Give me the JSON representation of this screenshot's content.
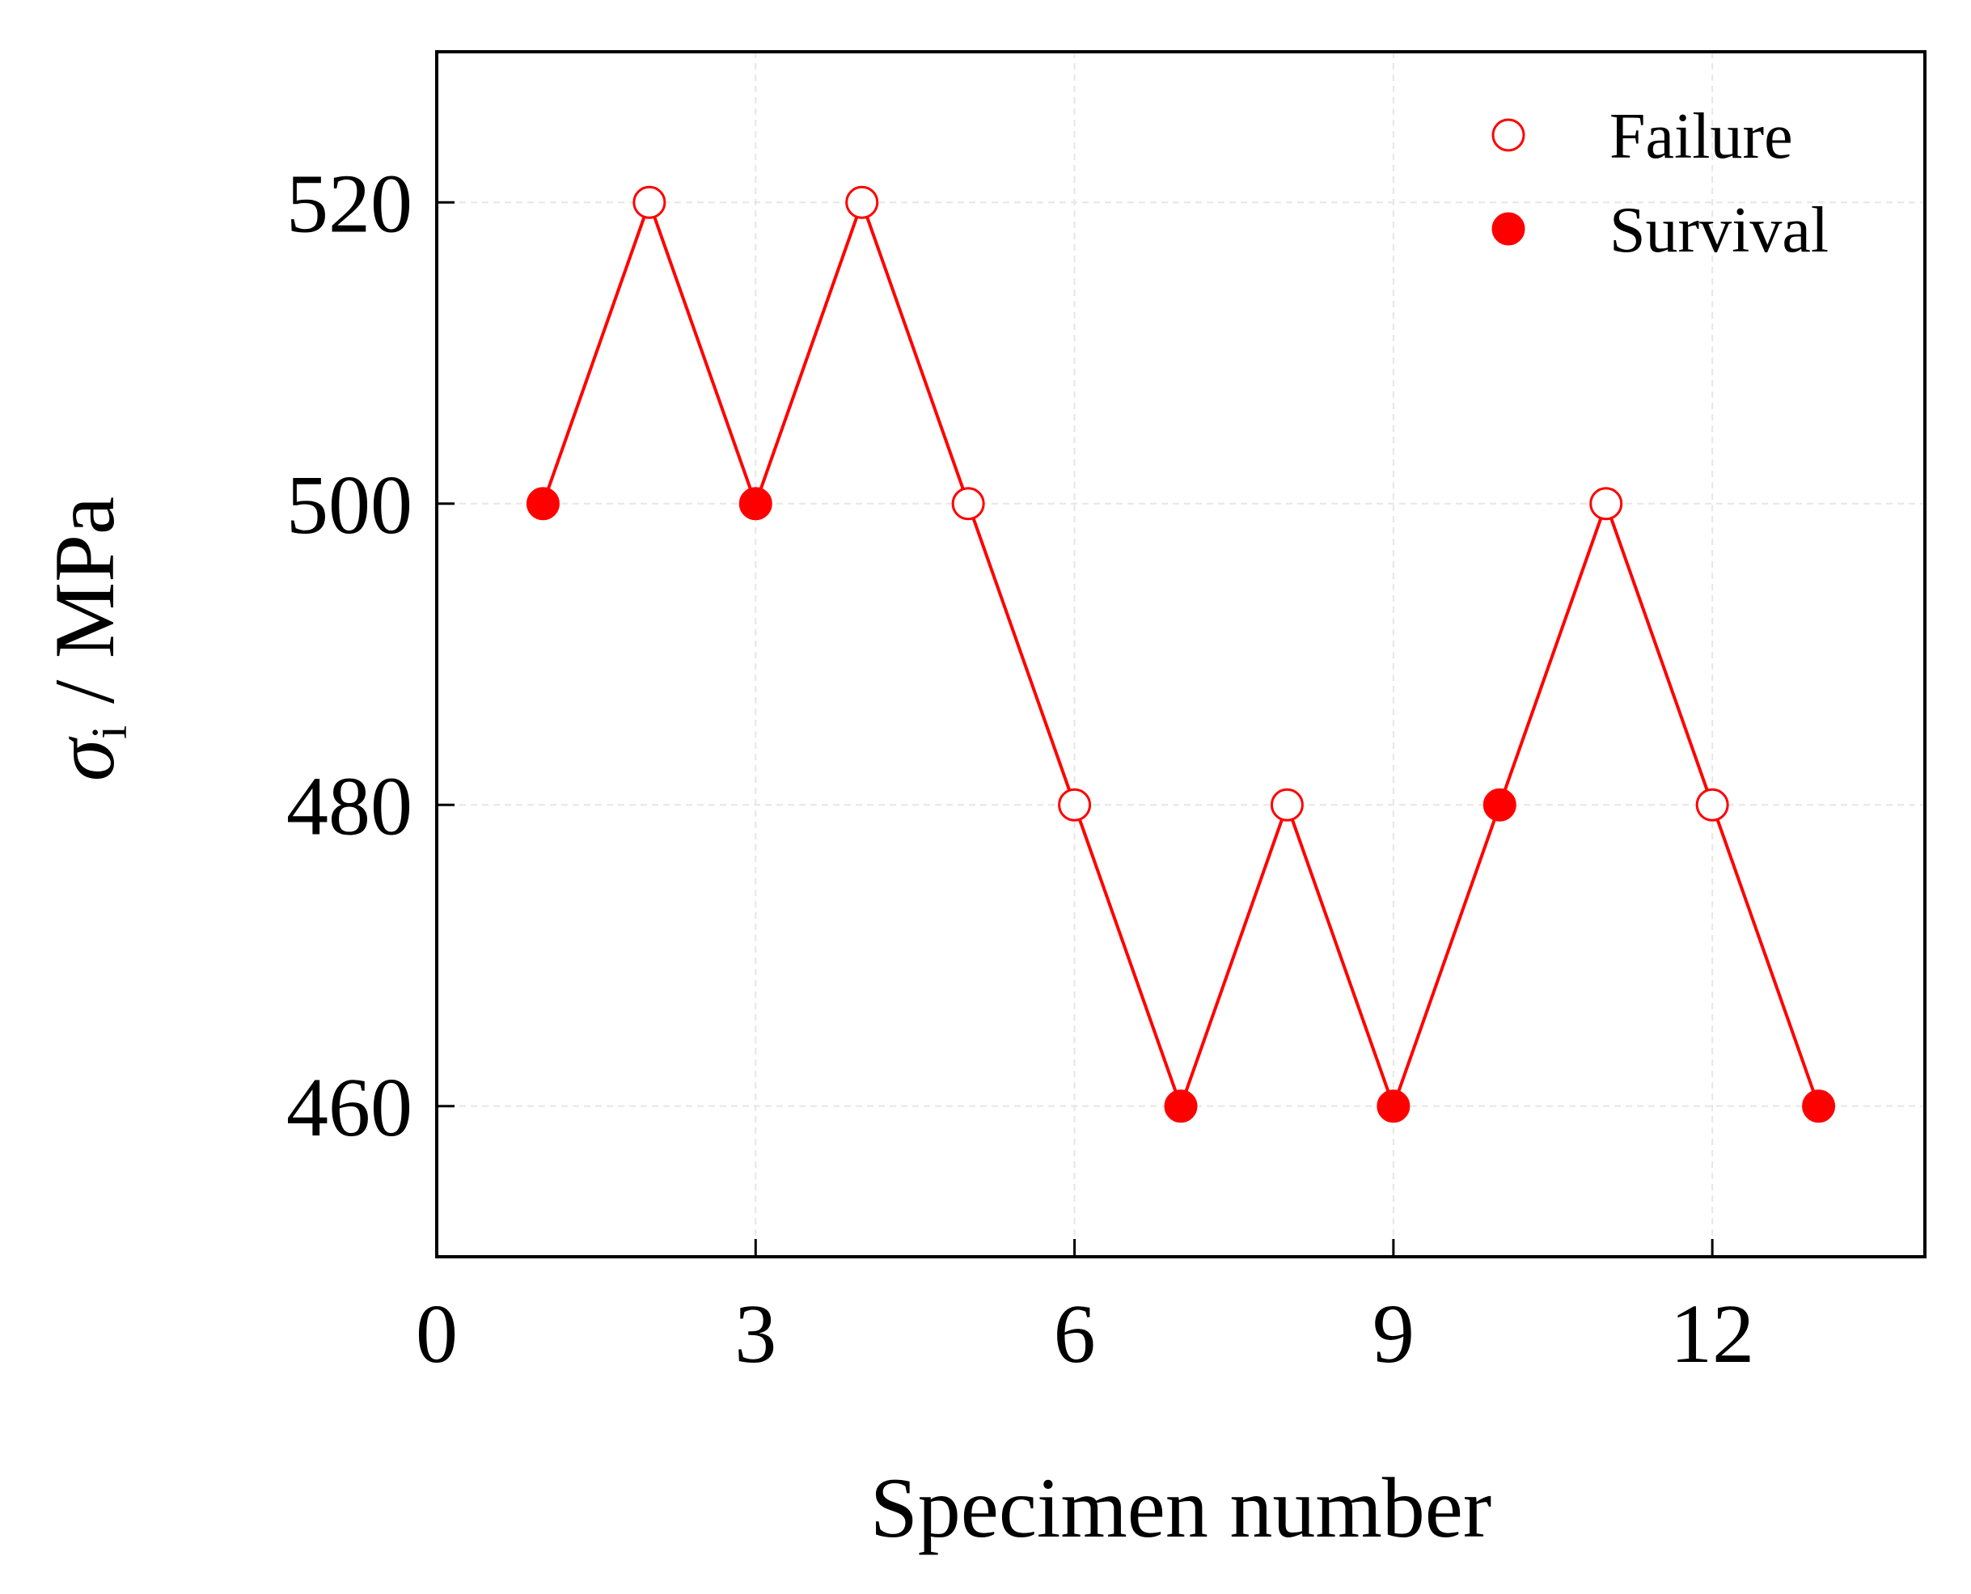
{
  "chart_data": {
    "type": "line",
    "xlabel": "Specimen number",
    "ylabel": {
      "symbol": "σ",
      "subscript": "i",
      "unit": " / MPa"
    },
    "xlim": [
      0,
      14
    ],
    "ylim": [
      450,
      530
    ],
    "xticks": [
      0,
      3,
      6,
      9,
      12
    ],
    "yticks": [
      460,
      480,
      500,
      520
    ],
    "grid": true,
    "legend_position": "top-right",
    "line_color": "#ff0000",
    "series": [
      {
        "x": [
          1,
          2,
          3,
          4,
          5,
          6,
          7,
          8,
          9,
          10,
          11,
          12,
          13
        ],
        "y": [
          500,
          520,
          500,
          520,
          500,
          480,
          460,
          480,
          460,
          480,
          500,
          480,
          460
        ],
        "outcome": [
          "Survival",
          "Failure",
          "Survival",
          "Failure",
          "Failure",
          "Failure",
          "Survival",
          "Failure",
          "Survival",
          "Survival",
          "Failure",
          "Failure",
          "Survival"
        ]
      }
    ],
    "legend": [
      {
        "label": "Failure",
        "marker": "open-circle",
        "color": "#ff0000"
      },
      {
        "label": "Survival",
        "marker": "filled-circle",
        "color": "#ff0000"
      }
    ]
  }
}
